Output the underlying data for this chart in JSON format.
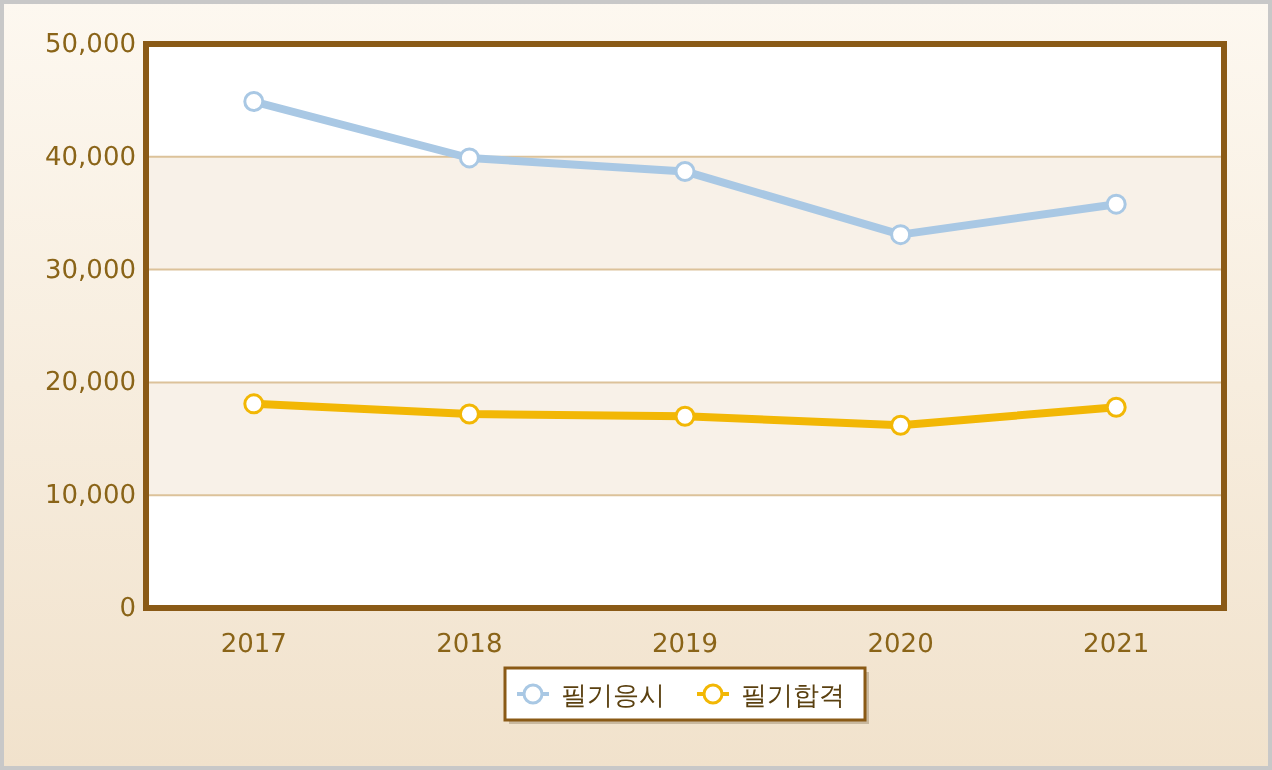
{
  "chart_data": {
    "type": "line",
    "categories": [
      "2017",
      "2018",
      "2019",
      "2020",
      "2021"
    ],
    "series": [
      {
        "name": "필기응시",
        "color": "#a9c8e4",
        "values": [
          44900,
          39900,
          38700,
          33100,
          35800
        ]
      },
      {
        "name": "필기합격",
        "color": "#f2b705",
        "values": [
          18100,
          17200,
          17000,
          16200,
          17800
        ]
      }
    ],
    "ylim": [
      0,
      50000
    ],
    "yticks": [
      {
        "value": 0,
        "label": "0"
      },
      {
        "value": 10000,
        "label": "10,000"
      },
      {
        "value": 20000,
        "label": "20,000"
      },
      {
        "value": 30000,
        "label": "30,000"
      },
      {
        "value": 40000,
        "label": "40,000"
      },
      {
        "value": 50000,
        "label": "50,000"
      }
    ],
    "grid": "y",
    "legend": "bottom",
    "marker": "circle",
    "line_style": "solid"
  }
}
